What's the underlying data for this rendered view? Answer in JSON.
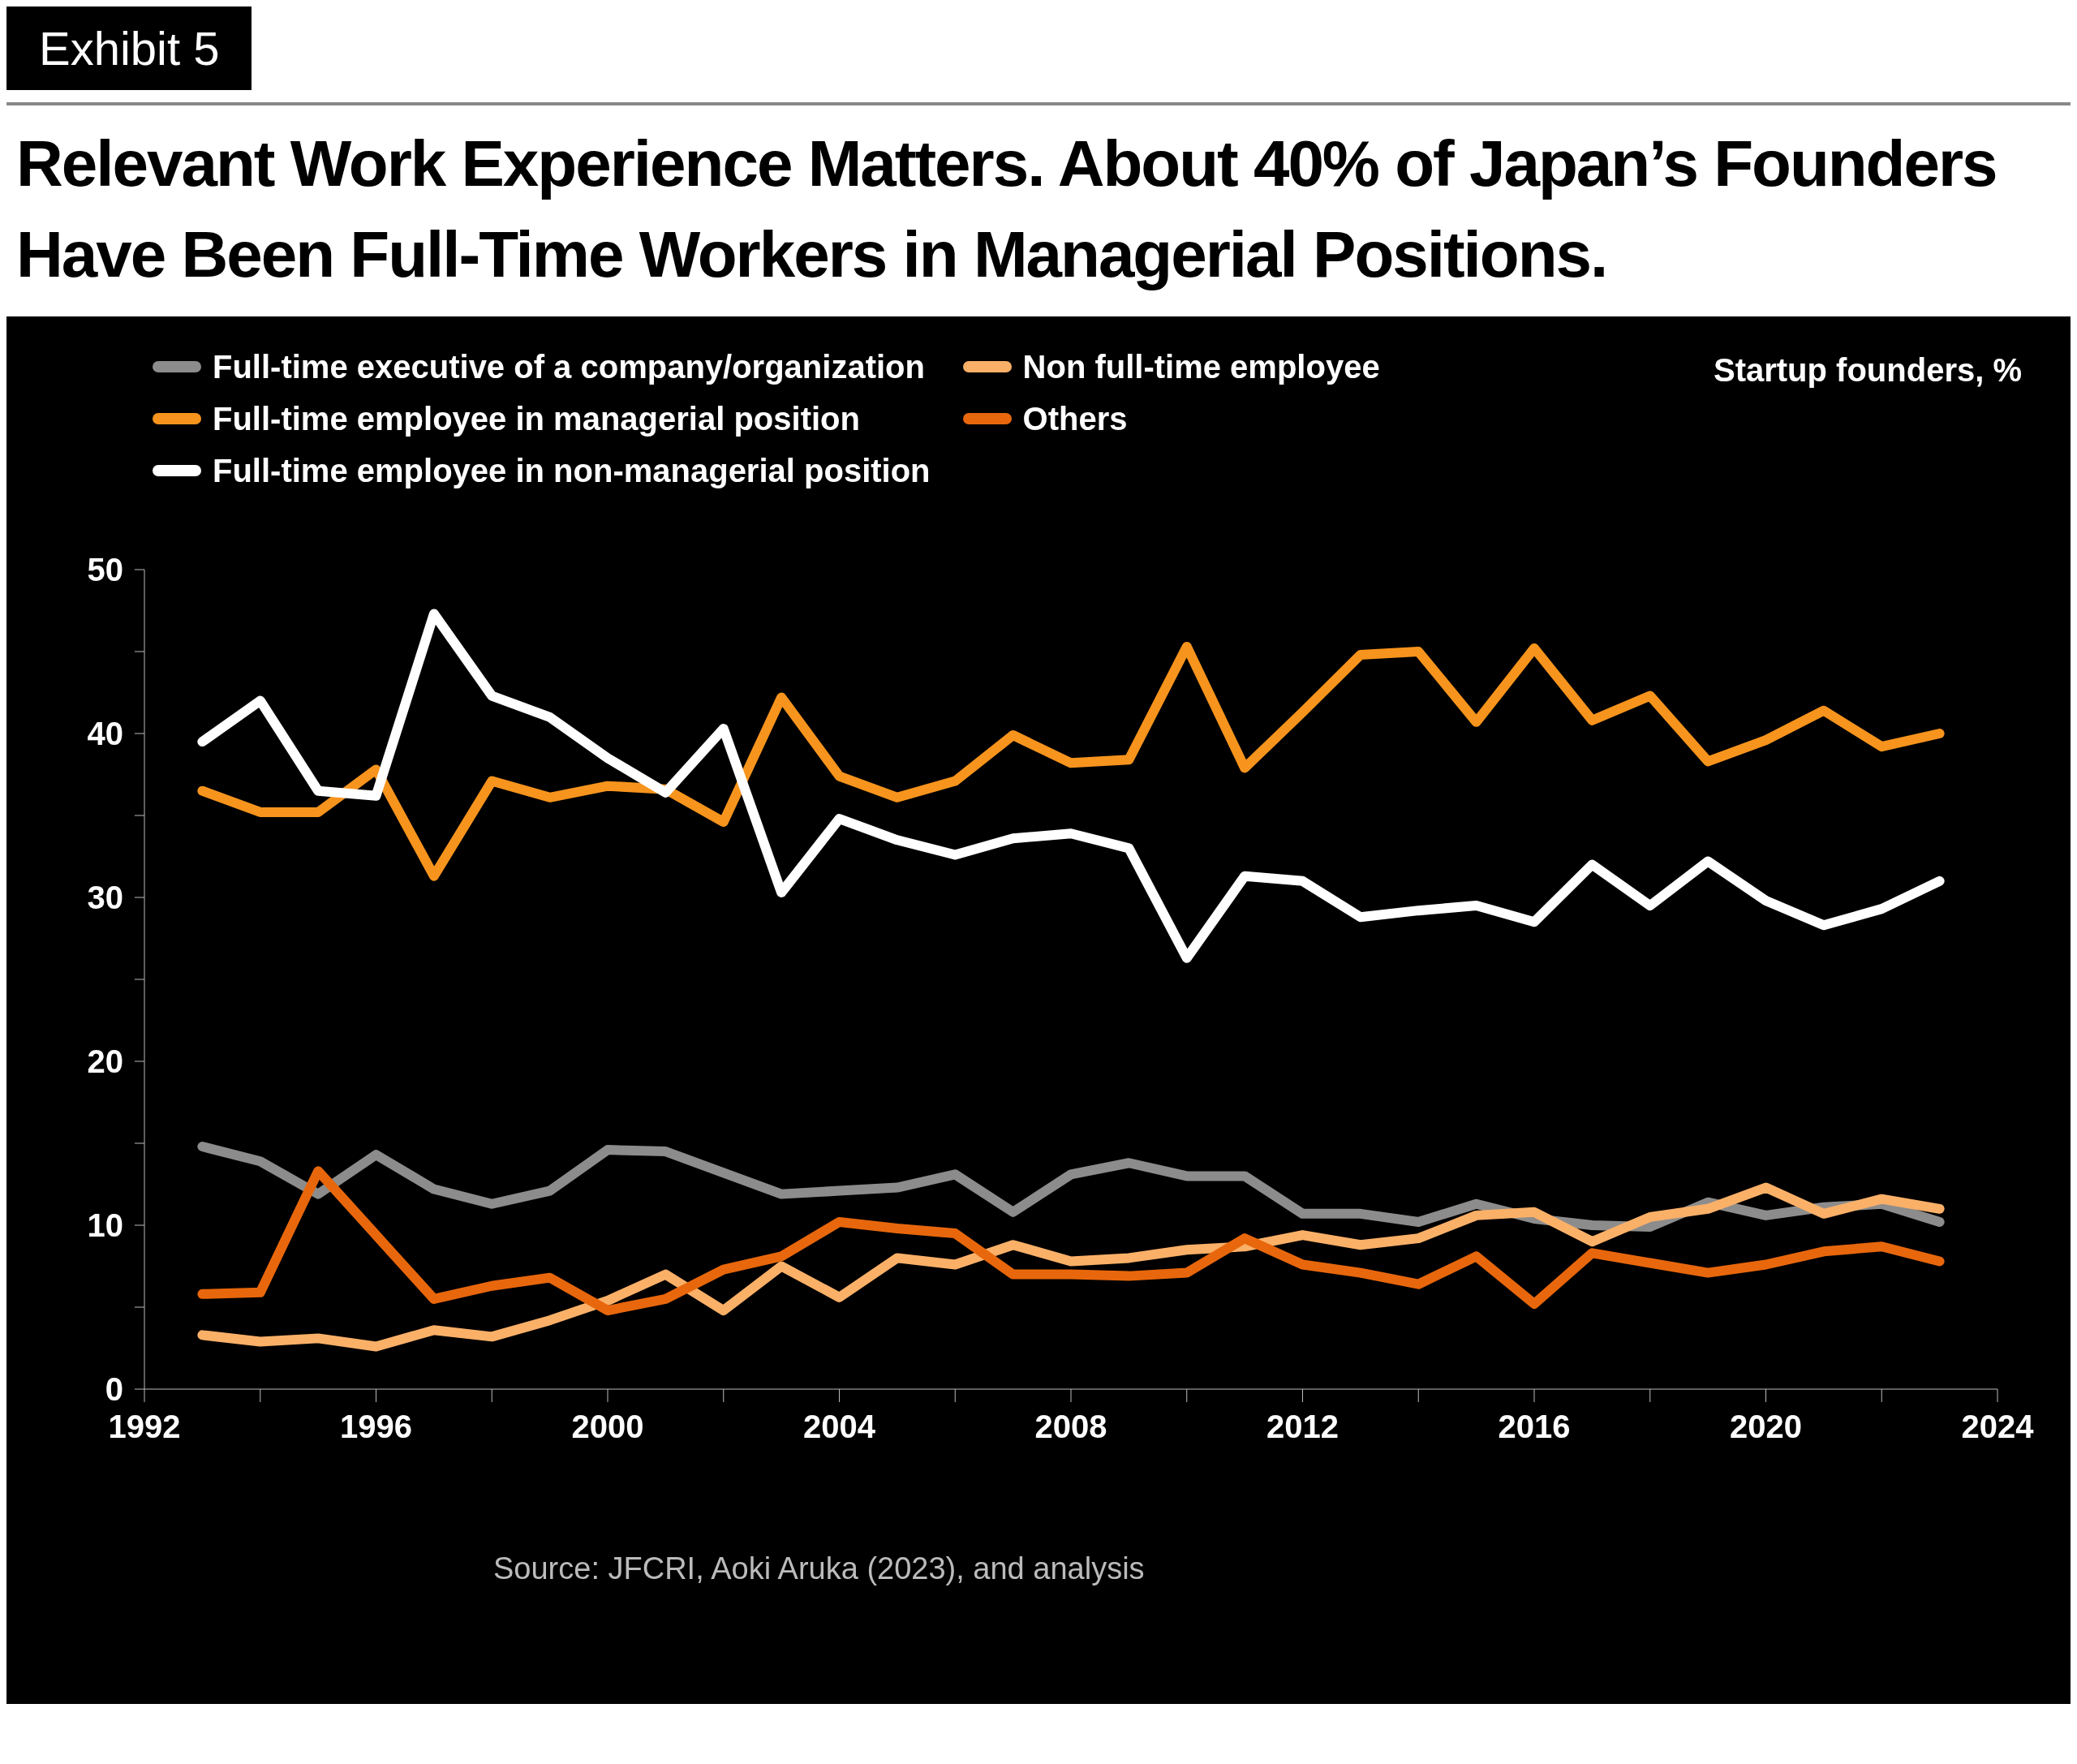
{
  "chart_data": {
    "type": "line",
    "title": "Relevant Work Experience Matters. About 40% of Japan’s Founders Have Been Full-Time Workers in Managerial Positions.",
    "annotations": [
      "Exhibit 5",
      "Startup founders, %",
      "Source: JFCRI, Aoki Aruka (2023), and analysis"
    ],
    "x": [
      1993,
      1994,
      1995,
      1996,
      1997,
      1998,
      1999,
      2000,
      2001,
      2002,
      2003,
      2004,
      2005,
      2006,
      2007,
      2008,
      2009,
      2010,
      2011,
      2012,
      2013,
      2014,
      2015,
      2016,
      2017,
      2018,
      2019,
      2020,
      2021,
      2022,
      2023
    ],
    "series": [
      {
        "name": "Full-time executive of a company/organization",
        "color": "#8c8c8c",
        "values": [
          14.8,
          13.9,
          11.9,
          14.3,
          12.2,
          11.3,
          12.1,
          14.6,
          14.5,
          13.2,
          11.9,
          12.1,
          12.3,
          13.1,
          10.8,
          13.1,
          13.8,
          13.0,
          13.0,
          10.7,
          10.7,
          10.2,
          11.3,
          10.4,
          10.0,
          9.9,
          11.4,
          10.6,
          11.1,
          11.3,
          10.2
        ]
      },
      {
        "name": "Full-time employee in managerial position",
        "color": "#f7941d",
        "values": [
          36.5,
          35.2,
          35.2,
          37.8,
          31.3,
          37.1,
          36.1,
          36.8,
          36.6,
          34.6,
          42.2,
          37.4,
          36.1,
          37.1,
          39.9,
          38.2,
          38.4,
          45.3,
          37.9,
          41.3,
          44.8,
          45.0,
          40.7,
          45.2,
          40.8,
          42.3,
          38.3,
          39.6,
          41.4,
          39.2,
          40.0
        ]
      },
      {
        "name": "Full-time employee in non-managerial position",
        "color": "#ffffff",
        "values": [
          39.5,
          42.0,
          36.5,
          36.2,
          47.3,
          42.3,
          41.0,
          38.5,
          36.4,
          40.3,
          30.3,
          34.8,
          33.5,
          32.6,
          33.6,
          33.9,
          33.0,
          26.3,
          31.3,
          31.0,
          28.8,
          29.2,
          29.5,
          28.5,
          32.0,
          29.5,
          32.2,
          29.8,
          28.3,
          29.3,
          31.0
        ]
      },
      {
        "name": "Non full-time employee",
        "color": "#fbb068",
        "values": [
          3.3,
          2.9,
          3.1,
          2.6,
          3.6,
          3.2,
          4.2,
          5.4,
          7.0,
          4.8,
          7.5,
          5.6,
          8.0,
          7.6,
          8.8,
          7.8,
          8.0,
          8.5,
          8.7,
          9.4,
          8.8,
          9.2,
          10.6,
          10.8,
          9.0,
          10.5,
          11.0,
          12.3,
          10.7,
          11.6,
          11.0
        ]
      },
      {
        "name": "Others",
        "color": "#e8670c",
        "values": [
          5.8,
          5.9,
          13.3,
          9.4,
          5.5,
          6.3,
          6.8,
          4.8,
          5.5,
          7.3,
          8.1,
          10.2,
          9.8,
          9.5,
          7.0,
          7.0,
          6.9,
          7.1,
          9.2,
          7.6,
          7.1,
          6.4,
          8.1,
          5.2,
          8.3,
          7.7,
          7.1,
          7.6,
          8.4,
          8.7,
          7.8
        ]
      }
    ],
    "xlim": [
      1992,
      2024
    ],
    "xticks": [
      1992,
      {
        "value": 1994,
        "label": null
      },
      1996,
      {
        "value": 1998,
        "label": null
      },
      2000,
      {
        "value": 2002,
        "label": null
      },
      2004,
      {
        "value": 2006,
        "label": null
      },
      2008,
      {
        "value": 2010,
        "label": null
      },
      2012,
      {
        "value": 2014,
        "label": null
      },
      2016,
      {
        "value": 2018,
        "label": null
      },
      2020,
      {
        "value": 2022,
        "label": null
      },
      2024
    ],
    "ylim": [
      0,
      50
    ],
    "yticks": [
      0,
      {
        "value": 5,
        "label": null
      },
      10,
      {
        "value": 15,
        "label": null
      },
      20,
      {
        "value": 25,
        "label": null
      },
      30,
      {
        "value": 35,
        "label": null
      },
      40,
      {
        "value": 45,
        "label": null
      },
      50
    ],
    "grid": false,
    "legend": "top left",
    "marker": "none",
    "line_style": "solid"
  }
}
